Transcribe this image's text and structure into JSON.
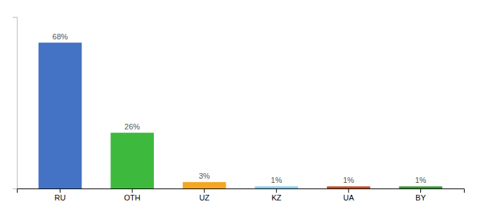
{
  "chart_data": {
    "type": "bar",
    "categories": [
      "RU",
      "OTH",
      "UZ",
      "KZ",
      "UA",
      "BY"
    ],
    "values": [
      68,
      26,
      3,
      1,
      1,
      1
    ],
    "value_labels": [
      "68%",
      "26%",
      "3%",
      "1%",
      "1%",
      "1%"
    ],
    "colors": [
      "#4472c4",
      "#3dba3d",
      "#f5a623",
      "#87ceeb",
      "#c0522a",
      "#3a9a3a"
    ],
    "ylim": [
      0,
      80
    ],
    "data_labels": true,
    "tick_labels": "x"
  }
}
